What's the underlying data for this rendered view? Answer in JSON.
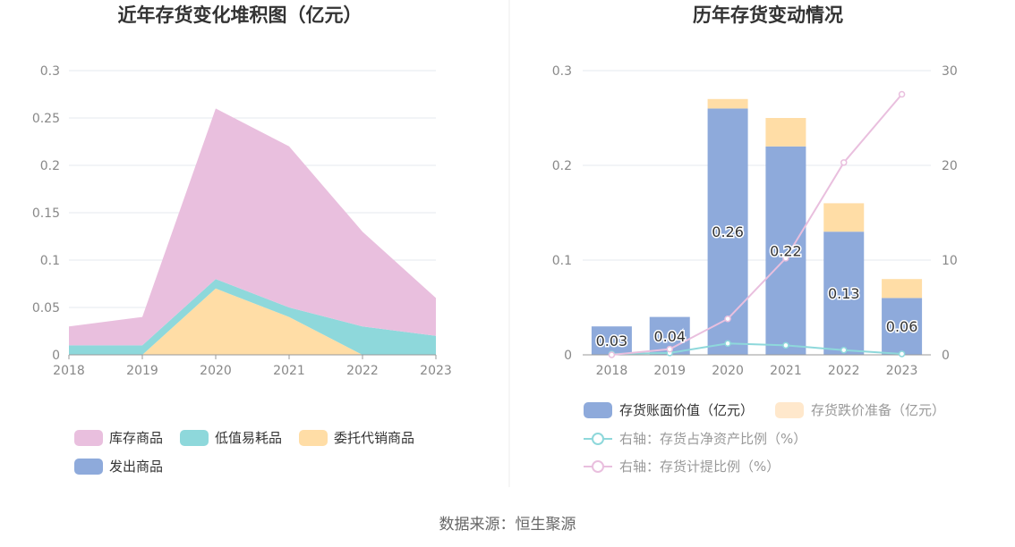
{
  "source_text": "数据来源：恒生聚源",
  "chart_data": [
    {
      "type": "area",
      "title": "近年存货变化堆积图（亿元）",
      "categories": [
        "2018",
        "2019",
        "2020",
        "2021",
        "2022",
        "2023"
      ],
      "y_ticks": [
        "0",
        "0.05",
        "0.1",
        "0.15",
        "0.2",
        "0.25",
        "0.3"
      ],
      "ylim": [
        0,
        0.3
      ],
      "stacked": true,
      "legend_placement": "bottom",
      "series": [
        {
          "name": "委托代销商品",
          "color": "#FFDDA6",
          "values": [
            0,
            0,
            0.07,
            0.04,
            0,
            0
          ]
        },
        {
          "name": "低值易耗品",
          "color": "#8ED8DB",
          "values": [
            0.01,
            0.01,
            0.01,
            0.01,
            0.03,
            0.02
          ]
        },
        {
          "name": "库存商品",
          "color": "#E9BFDE",
          "values": [
            0.02,
            0.03,
            0.18,
            0.17,
            0.1,
            0.04
          ]
        },
        {
          "name": "发出商品",
          "color": "#8EAADB",
          "values": [
            0,
            0,
            0,
            0,
            0,
            0
          ]
        }
      ],
      "legend_order": [
        "库存商品",
        "低值易耗品",
        "委托代销商品",
        "发出商品"
      ]
    },
    {
      "type": "bar",
      "title": "历年存货变动情况",
      "categories": [
        "2018",
        "2019",
        "2020",
        "2021",
        "2022",
        "2023"
      ],
      "y_ticks_left": [
        "0",
        "0.1",
        "0.2",
        "0.3"
      ],
      "y_ticks_right": [
        "0",
        "10",
        "20",
        "30"
      ],
      "ylim_left": [
        0,
        0.3
      ],
      "ylim_right": [
        0,
        30
      ],
      "stacked": true,
      "legend_placement": "bottom",
      "series": [
        {
          "name": "存货账面价值（亿元）",
          "color": "#8EAADB",
          "axis": "left",
          "values": [
            0.03,
            0.04,
            0.26,
            0.22,
            0.13,
            0.06
          ],
          "labels": [
            "0.03",
            "0.04",
            "0.26",
            "0.22",
            "0.13",
            "0.06"
          ]
        },
        {
          "name": "存货跌价准备（亿元）",
          "color": "#FFDDA6",
          "axis": "left",
          "values": [
            0,
            0,
            0.01,
            0.03,
            0.03,
            0.02
          ]
        }
      ],
      "line_series": [
        {
          "name": "右轴：存货占净资产比例（%）",
          "color": "#8ED8DB",
          "axis": "right",
          "values": [
            0.1,
            0.2,
            1.2,
            1.0,
            0.5,
            0.1
          ]
        },
        {
          "name": "右轴：存货计提比例（%）",
          "color": "#E9BFDE",
          "axis": "right",
          "values": [
            0,
            0.6,
            3.8,
            10.2,
            20.3,
            27.5
          ]
        }
      ]
    }
  ]
}
